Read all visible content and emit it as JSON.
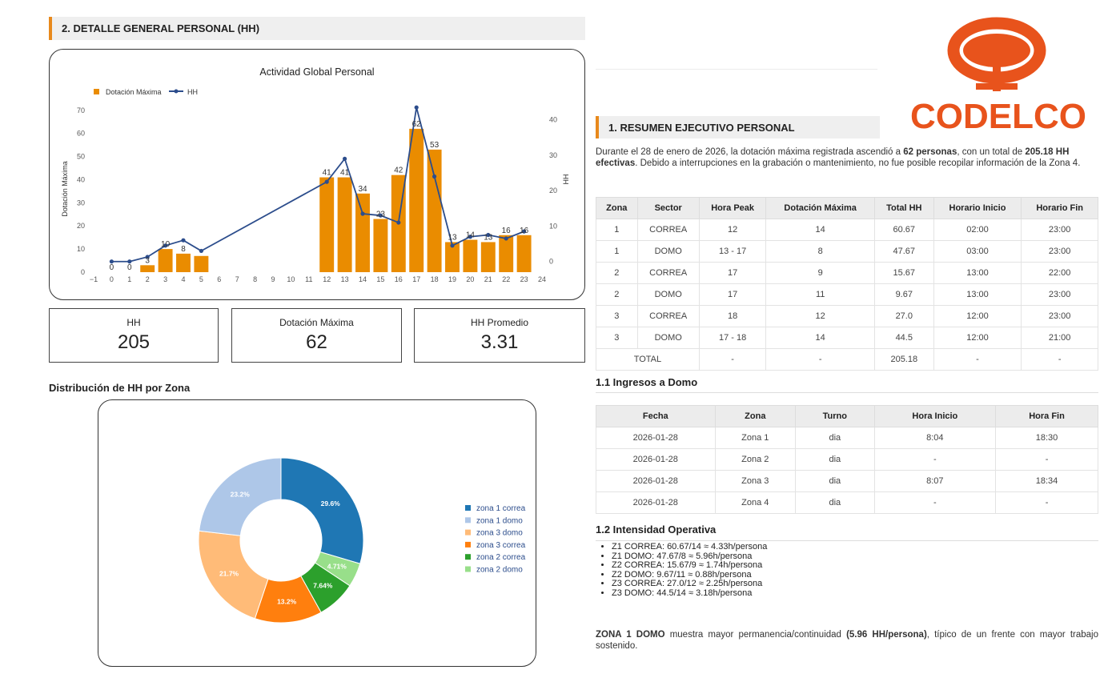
{
  "left": {
    "section_title": "2. DETALLE GENERAL PERSONAL (HH)",
    "chart_title": "Actividad Global Personal",
    "legend_bar": "Dotación Máxima",
    "legend_line": "HH",
    "ylabel_left": "Dotación Máxima",
    "ylabel_right": "HH",
    "kpis": [
      {
        "label": "HH",
        "value": "205"
      },
      {
        "label": "Dotación Máxima",
        "value": "62"
      },
      {
        "label": "HH Promedio",
        "value": "3.31"
      }
    ],
    "donut_title": "Distribución de HH por Zona"
  },
  "chart_data": [
    {
      "type": "bar",
      "title": "Actividad Global Personal",
      "xlabel": "",
      "ylabel": "Dotación Máxima",
      "y2label": "HH",
      "xlim": [
        -1,
        24
      ],
      "ylim": [
        0,
        72
      ],
      "y2lim": [
        -3,
        44
      ],
      "x_ticks": [
        "−1",
        "0",
        "1",
        "2",
        "3",
        "4",
        "5",
        "6",
        "7",
        "8",
        "9",
        "10",
        "11",
        "12",
        "13",
        "14",
        "15",
        "16",
        "17",
        "18",
        "19",
        "20",
        "21",
        "22",
        "23",
        "24"
      ],
      "y_ticks": [
        0,
        10,
        20,
        30,
        40,
        50,
        60,
        70
      ],
      "y2_ticks": [
        0,
        10,
        20,
        30,
        40
      ],
      "legend": "top-left",
      "series": [
        {
          "name": "Dotación Máxima",
          "type": "bar",
          "color": "#ea8c00",
          "x": [
            0,
            1,
            2,
            3,
            4,
            5,
            12,
            13,
            14,
            15,
            16,
            17,
            18,
            19,
            20,
            21,
            22,
            23
          ],
          "values": [
            0,
            0,
            3,
            10,
            8,
            7,
            41,
            41,
            34,
            23,
            42,
            62,
            53,
            13,
            14,
            13,
            16,
            16
          ],
          "labels": [
            "0",
            "0",
            "3",
            "10",
            "8",
            "",
            "41",
            "41",
            "34",
            "23",
            "42",
            "62",
            "53",
            "13",
            "14",
            "13",
            "16",
            "16"
          ]
        },
        {
          "name": "HH",
          "type": "line",
          "color": "#2c4d8c",
          "x": [
            0,
            1,
            2,
            3,
            4,
            5,
            12,
            13,
            14,
            15,
            16,
            17,
            18,
            19,
            20,
            21,
            22,
            23
          ],
          "values": [
            0,
            0,
            1.3,
            4.5,
            6,
            3,
            22.5,
            29,
            13.5,
            13,
            11,
            43.5,
            24,
            4.5,
            7,
            7.5,
            6.5,
            8.5
          ]
        }
      ]
    },
    {
      "type": "pie",
      "title": "Distribución de HH por Zona",
      "legend": "right",
      "labels": [
        "zona 1 correa",
        "zona 1 domo",
        "zona 3 domo",
        "zona 3 correa",
        "zona 2 correa",
        "zona 2 domo"
      ],
      "slice_order": [
        "zona 1 correa",
        "zona 2 domo",
        "zona 2 correa",
        "zona 3 correa",
        "zona 3 domo",
        "zona 1 domo"
      ],
      "values": [
        29.6,
        23.2,
        21.7,
        13.2,
        7.64,
        4.71
      ],
      "slice_labels": [
        "29.6%",
        "23.2%",
        "21.7%",
        "13.2%",
        "7.64%",
        "4.71%"
      ],
      "colors": [
        "#1f77b4",
        "#aec7e8",
        "#ffbb78",
        "#ff7f0e",
        "#2ca02c",
        "#98df8a"
      ]
    }
  ],
  "right": {
    "logo_text": "CODELCO",
    "section_title": "1. RESUMEN EJECUTIVO PERSONAL",
    "summary_a": "Durante el 28 de enero de 2026, la dotación máxima registrada ascendió a ",
    "summary_b": "62 personas",
    "summary_c": ", con un total de ",
    "summary_d": "205.18 HH efectivas",
    "summary_e": ". Debido a interrupciones en la grabación o mantenimiento, no fue posible recopilar información de la Zona 4.",
    "table1": {
      "headers": [
        "Zona",
        "Sector",
        "Hora Peak",
        "Dotación Máxima",
        "Total HH",
        "Horario Inicio",
        "Horario Fin"
      ],
      "rows": [
        [
          "1",
          "CORREA",
          "12",
          "14",
          "60.67",
          "02:00",
          "23:00"
        ],
        [
          "1",
          "DOMO",
          "13 - 17",
          "8",
          "47.67",
          "03:00",
          "23:00"
        ],
        [
          "2",
          "CORREA",
          "17",
          "9",
          "15.67",
          "13:00",
          "22:00"
        ],
        [
          "2",
          "DOMO",
          "17",
          "11",
          "9.67",
          "13:00",
          "23:00"
        ],
        [
          "3",
          "CORREA",
          "18",
          "12",
          "27.0",
          "12:00",
          "23:00"
        ],
        [
          "3",
          "DOMO",
          "17 - 18",
          "14",
          "44.5",
          "12:00",
          "21:00"
        ]
      ],
      "total": [
        "TOTAL",
        "-",
        "-",
        "205.18",
        "-",
        "-"
      ]
    },
    "sub1": "1.1 Ingresos a Domo",
    "table2": {
      "headers": [
        "Fecha",
        "Zona",
        "Turno",
        "Hora Inicio",
        "Hora Fin"
      ],
      "rows": [
        [
          "2026-01-28",
          "Zona 1",
          "dia",
          "8:04",
          "18:30"
        ],
        [
          "2026-01-28",
          "Zona 2",
          "dia",
          "-",
          "-"
        ],
        [
          "2026-01-28",
          "Zona 3",
          "dia",
          "8:07",
          "18:34"
        ],
        [
          "2026-01-28",
          "Zona 4",
          "dia",
          "-",
          "-"
        ]
      ]
    },
    "sub2": "1.2 Intensidad Operativa",
    "intensity": [
      "Z1 CORREA: 60.67/14 ≈ 4.33h/persona",
      "Z1 DOMO: 47.67/8 ≈ 5.96h/persona",
      "Z2 CORREA: 15.67/9 ≈ 1.74h/persona",
      "Z2 DOMO: 9.67/11 ≈ 0.88h/persona",
      "Z3 CORREA: 27.0/12 ≈ 2.25h/persona",
      "Z3 DOMO: 44.5/14 ≈ 3.18h/persona"
    ],
    "conclusion_a": "ZONA 1 DOMO",
    "conclusion_b": " muestra mayor permanencia/continuidad ",
    "conclusion_c": "(5.96 HH/persona)",
    "conclusion_d": ", típico de un frente con mayor trabajo sostenido."
  }
}
